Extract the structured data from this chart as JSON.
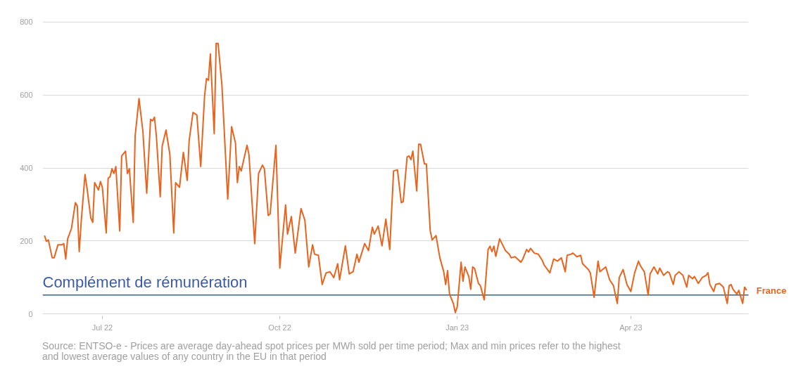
{
  "chart_data": {
    "type": "line",
    "x": [
      "2022-06-01",
      "2022-06-02",
      "2022-06-03",
      "2022-06-05",
      "2022-06-06",
      "2022-06-08",
      "2022-06-10",
      "2022-06-11",
      "2022-06-12",
      "2022-06-13",
      "2022-06-15",
      "2022-06-17",
      "2022-06-18",
      "2022-06-19",
      "2022-06-20",
      "2022-06-22",
      "2022-06-23",
      "2022-06-25",
      "2022-06-26",
      "2022-06-27",
      "2022-06-29",
      "2022-06-30",
      "2022-07-01",
      "2022-07-03",
      "2022-07-04",
      "2022-07-05",
      "2022-07-06",
      "2022-07-07",
      "2022-07-08",
      "2022-07-10",
      "2022-07-11",
      "2022-07-13",
      "2022-07-14",
      "2022-07-15",
      "2022-07-17",
      "2022-07-18",
      "2022-07-20",
      "2022-07-22",
      "2022-07-24",
      "2022-07-26",
      "2022-07-27",
      "2022-07-28",
      "2022-07-29",
      "2022-07-31",
      "2022-08-01",
      "2022-08-03",
      "2022-08-05",
      "2022-08-07",
      "2022-08-08",
      "2022-08-10",
      "2022-08-12",
      "2022-08-14",
      "2022-08-15",
      "2022-08-17",
      "2022-08-19",
      "2022-08-21",
      "2022-08-23",
      "2022-08-24",
      "2022-08-25",
      "2022-08-26",
      "2022-08-28",
      "2022-08-29",
      "2022-08-30",
      "2022-09-01",
      "2022-09-04",
      "2022-09-06",
      "2022-09-08",
      "2022-09-09",
      "2022-09-10",
      "2022-09-11",
      "2022-09-14",
      "2022-09-15",
      "2022-09-18",
      "2022-09-20",
      "2022-09-22",
      "2022-09-23",
      "2022-09-25",
      "2022-09-26",
      "2022-09-29",
      "2022-10-01",
      "2022-10-04",
      "2022-10-05",
      "2022-10-07",
      "2022-10-09",
      "2022-10-12",
      "2022-10-14",
      "2022-10-16",
      "2022-10-18",
      "2022-10-19",
      "2022-10-21",
      "2022-10-23",
      "2022-10-25",
      "2022-10-27",
      "2022-10-29",
      "2022-10-31",
      "2022-11-01",
      "2022-11-04",
      "2022-11-06",
      "2022-11-08",
      "2022-11-10",
      "2022-11-11",
      "2022-11-14",
      "2022-11-16",
      "2022-11-18",
      "2022-11-19",
      "2022-11-21",
      "2022-11-23",
      "2022-11-25",
      "2022-11-27",
      "2022-11-29",
      "2022-12-01",
      "2022-12-03",
      "2022-12-04",
      "2022-12-06",
      "2022-12-07",
      "2022-12-08",
      "2022-12-09",
      "2022-12-11",
      "2022-12-12",
      "2022-12-13",
      "2022-12-15",
      "2022-12-16",
      "2022-12-18",
      "2022-12-19",
      "2022-12-21",
      "2022-12-23",
      "2022-12-25",
      "2022-12-26",
      "2022-12-27",
      "2022-12-28",
      "2022-12-30",
      "2022-12-31",
      "2023-01-01",
      "2023-01-03",
      "2023-01-04",
      "2023-01-05",
      "2023-01-07",
      "2023-01-08",
      "2023-01-09",
      "2023-01-10",
      "2023-01-12",
      "2023-01-13",
      "2023-01-15",
      "2023-01-17",
      "2023-01-18",
      "2023-01-19",
      "2023-01-20",
      "2023-01-21",
      "2023-01-23",
      "2023-01-26",
      "2023-01-28",
      "2023-01-29",
      "2023-01-31",
      "2023-02-03",
      "2023-02-04",
      "2023-02-06",
      "2023-02-07",
      "2023-02-08",
      "2023-02-10",
      "2023-02-12",
      "2023-02-14",
      "2023-02-15",
      "2023-02-18",
      "2023-02-20",
      "2023-02-22",
      "2023-02-24",
      "2023-02-26",
      "2023-02-27",
      "2023-03-01",
      "2023-03-02",
      "2023-03-04",
      "2023-03-06",
      "2023-03-07",
      "2023-03-10",
      "2023-03-11",
      "2023-03-13",
      "2023-03-15",
      "2023-03-16",
      "2023-03-18",
      "2023-03-19",
      "2023-03-21",
      "2023-03-23",
      "2023-03-25",
      "2023-03-26",
      "2023-03-28",
      "2023-03-30",
      "2023-04-01",
      "2023-04-03",
      "2023-04-05",
      "2023-04-06",
      "2023-04-08",
      "2023-04-10",
      "2023-04-11",
      "2023-04-13",
      "2023-04-15",
      "2023-04-16",
      "2023-04-18",
      "2023-04-20",
      "2023-04-21",
      "2023-04-23",
      "2023-04-24",
      "2023-04-26",
      "2023-04-28",
      "2023-04-30",
      "2023-05-01",
      "2023-05-03",
      "2023-05-04",
      "2023-05-06",
      "2023-05-08",
      "2023-05-10",
      "2023-05-11",
      "2023-05-12",
      "2023-05-14",
      "2023-05-15",
      "2023-05-17",
      "2023-05-19",
      "2023-05-21",
      "2023-05-22",
      "2023-05-23",
      "2023-05-24",
      "2023-05-26",
      "2023-05-27",
      "2023-05-29",
      "2023-05-30",
      "2023-05-31"
    ],
    "series": [
      {
        "name": "France",
        "color": "#e8641e",
        "values": [
          215,
          199,
          203,
          154,
          154,
          190,
          190,
          193,
          151,
          206,
          235,
          305,
          296,
          171,
          251,
          382,
          347,
          263,
          251,
          360,
          340,
          363,
          347,
          222,
          372,
          376,
          398,
          385,
          404,
          228,
          433,
          446,
          385,
          398,
          251,
          488,
          590,
          501,
          331,
          533,
          529,
          539,
          488,
          321,
          459,
          504,
          437,
          222,
          360,
          347,
          443,
          366,
          475,
          552,
          545,
          404,
          597,
          645,
          640,
          712,
          494,
          741,
          741,
          626,
          315,
          513,
          469,
          360,
          404,
          392,
          462,
          437,
          193,
          385,
          408,
          398,
          270,
          274,
          462,
          126,
          299,
          219,
          267,
          167,
          289,
          257,
          129,
          190,
          164,
          161,
          81,
          113,
          116,
          100,
          138,
          94,
          187,
          110,
          116,
          164,
          142,
          193,
          174,
          238,
          219,
          241,
          187,
          260,
          177,
          392,
          395,
          305,
          308,
          430,
          433,
          423,
          446,
          337,
          465,
          465,
          411,
          411,
          228,
          203,
          215,
          154,
          116,
          81,
          119,
          55,
          29,
          4,
          20,
          142,
          90,
          129,
          103,
          68,
          129,
          125,
          84,
          78,
          39,
          177,
          186,
          171,
          186,
          158,
          206,
          174,
          164,
          154,
          157,
          142,
          151,
          177,
          170,
          180,
          167,
          164,
          148,
          135,
          113,
          151,
          145,
          154,
          116,
          161,
          164,
          167,
          157,
          161,
          138,
          122,
          113,
          46,
          145,
          116,
          125,
          129,
          94,
          78,
          29,
          100,
          122,
          81,
          62,
          113,
          145,
          132,
          116,
          52,
          110,
          129,
          110,
          126,
          106,
          116,
          113,
          81,
          106,
          116,
          106,
          74,
          106,
          97,
          103,
          84,
          100,
          106,
          113,
          81,
          62,
          81,
          84,
          74,
          29,
          78,
          81,
          68,
          55,
          65,
          29,
          74,
          65
        ]
      }
    ],
    "xlim": [
      "2022-05-31",
      "2023-06-01"
    ],
    "xticks": [
      {
        "value": "2022-07-01",
        "label": "Jul 22"
      },
      {
        "value": "2022-10-01",
        "label": "Oct 22"
      },
      {
        "value": "2023-01-01",
        "label": "Jan 23"
      },
      {
        "value": "2023-04-01",
        "label": "Apr 23"
      }
    ],
    "ylim": [
      -5,
      805
    ],
    "yticks": [
      0,
      200,
      400,
      600,
      800
    ],
    "grid": "y",
    "ref_lines": [
      {
        "axis": "y",
        "value": 52,
        "label": "Complément de rémunération",
        "color": "#3b5ba5"
      }
    ],
    "annotations": [
      "Source: ENTSO-e - Prices are average day-ahead spot prices per MWh sold per time period; Max and min prices refer to the highest and lowest average values of any country in the EU in that period"
    ]
  }
}
